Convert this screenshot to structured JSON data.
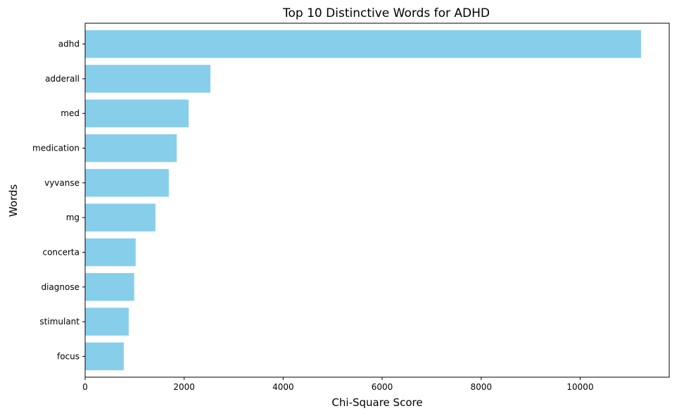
{
  "chart_data": {
    "type": "bar",
    "orientation": "horizontal",
    "title": "Top 10 Distinctive Words for ADHD",
    "xlabel": "Chi-Square Score",
    "ylabel": "Words",
    "categories": [
      "adhd",
      "adderall",
      "med",
      "medication",
      "vyvanse",
      "mg",
      "concerta",
      "diagnose",
      "stimulant",
      "focus"
    ],
    "values": [
      11230,
      2530,
      2090,
      1850,
      1690,
      1420,
      1020,
      990,
      880,
      780
    ],
    "xlim": [
      0,
      11800
    ],
    "xticks": [
      0,
      2000,
      4000,
      6000,
      8000,
      10000
    ],
    "bar_color": "#87ceeb",
    "grid": false,
    "legend": "none"
  }
}
